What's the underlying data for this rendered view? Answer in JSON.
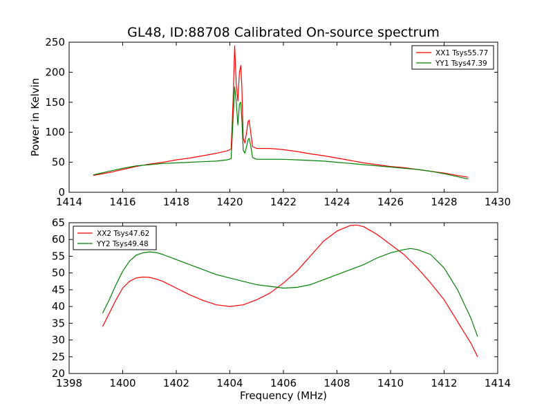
{
  "title": "GL48, ID:88708 Calibrated On-source spectrum",
  "chart_data": [
    {
      "type": "line",
      "ylabel": "Power in Kelvin",
      "xlabel": "",
      "xlim": [
        1414,
        1430
      ],
      "ylim": [
        0,
        250
      ],
      "xticks": [
        "1414",
        "1416",
        "1418",
        "1420",
        "1422",
        "1424",
        "1426",
        "1428",
        "1430"
      ],
      "yticks": [
        "0",
        "50",
        "100",
        "150",
        "200",
        "250"
      ],
      "legend_position": "top-right",
      "series": [
        {
          "name": "XX1 Tsys55.77",
          "color": "#ff0000",
          "points": [
            [
              1414.9,
              28
            ],
            [
              1415.5,
              33
            ],
            [
              1416.0,
              38
            ],
            [
              1416.5,
              43
            ],
            [
              1417.0,
              47
            ],
            [
              1417.5,
              50
            ],
            [
              1418.0,
              54
            ],
            [
              1418.5,
              57
            ],
            [
              1419.0,
              61
            ],
            [
              1419.5,
              65
            ],
            [
              1419.9,
              69
            ],
            [
              1420.05,
              72
            ],
            [
              1420.12,
              150
            ],
            [
              1420.18,
              244
            ],
            [
              1420.24,
              180
            ],
            [
              1420.3,
              152
            ],
            [
              1420.36,
              200
            ],
            [
              1420.41,
              211
            ],
            [
              1420.45,
              175
            ],
            [
              1420.5,
              90
            ],
            [
              1420.56,
              82
            ],
            [
              1420.62,
              98
            ],
            [
              1420.68,
              118
            ],
            [
              1420.72,
              120
            ],
            [
              1420.78,
              100
            ],
            [
              1420.85,
              76
            ],
            [
              1421.0,
              73
            ],
            [
              1421.5,
              73
            ],
            [
              1422.0,
              71
            ],
            [
              1422.5,
              68
            ],
            [
              1423.0,
              64
            ],
            [
              1423.5,
              61
            ],
            [
              1424.0,
              57
            ],
            [
              1424.5,
              53
            ],
            [
              1425.0,
              49
            ],
            [
              1425.5,
              46
            ],
            [
              1426.0,
              43
            ],
            [
              1426.5,
              41
            ],
            [
              1427.0,
              38
            ],
            [
              1427.5,
              35
            ],
            [
              1428.0,
              32
            ],
            [
              1428.5,
              28
            ],
            [
              1428.9,
              25
            ]
          ]
        },
        {
          "name": "YY1 Tsys47.39",
          "color": "#008000",
          "points": [
            [
              1414.9,
              29
            ],
            [
              1415.5,
              35
            ],
            [
              1416.0,
              40
            ],
            [
              1416.5,
              44
            ],
            [
              1417.0,
              46
            ],
            [
              1417.5,
              48
            ],
            [
              1418.0,
              49
            ],
            [
              1418.5,
              50
            ],
            [
              1419.0,
              51
            ],
            [
              1419.5,
              52
            ],
            [
              1419.9,
              54
            ],
            [
              1420.05,
              56
            ],
            [
              1420.12,
              120
            ],
            [
              1420.18,
              176
            ],
            [
              1420.24,
              150
            ],
            [
              1420.3,
              112
            ],
            [
              1420.36,
              147
            ],
            [
              1420.41,
              150
            ],
            [
              1420.45,
              120
            ],
            [
              1420.5,
              70
            ],
            [
              1420.56,
              65
            ],
            [
              1420.62,
              75
            ],
            [
              1420.68,
              88
            ],
            [
              1420.72,
              90
            ],
            [
              1420.78,
              78
            ],
            [
              1420.85,
              58
            ],
            [
              1421.0,
              55
            ],
            [
              1421.5,
              55
            ],
            [
              1422.0,
              55
            ],
            [
              1422.5,
              54
            ],
            [
              1423.0,
              53
            ],
            [
              1423.5,
              52
            ],
            [
              1424.0,
              50
            ],
            [
              1424.5,
              48
            ],
            [
              1425.0,
              46
            ],
            [
              1425.5,
              44
            ],
            [
              1426.0,
              42
            ],
            [
              1426.5,
              40
            ],
            [
              1427.0,
              38
            ],
            [
              1427.5,
              35
            ],
            [
              1428.0,
              31
            ],
            [
              1428.5,
              26
            ],
            [
              1428.9,
              22
            ]
          ]
        }
      ]
    },
    {
      "type": "line",
      "ylabel": "",
      "xlabel": "Frequency (MHz)",
      "xlim": [
        1398,
        1414
      ],
      "ylim": [
        20,
        65
      ],
      "xticks": [
        "1398",
        "1400",
        "1402",
        "1404",
        "1406",
        "1408",
        "1410",
        "1412",
        "1414"
      ],
      "yticks": [
        "20",
        "25",
        "30",
        "35",
        "40",
        "45",
        "50",
        "55",
        "60",
        "65"
      ],
      "legend_position": "top-left",
      "series": [
        {
          "name": "XX2 Tsys47.62",
          "color": "#ff0000",
          "points": [
            [
              1399.25,
              34
            ],
            [
              1399.5,
              38
            ],
            [
              1399.75,
              42
            ],
            [
              1400.0,
              45.5
            ],
            [
              1400.25,
              47.5
            ],
            [
              1400.5,
              48.5
            ],
            [
              1400.75,
              48.8
            ],
            [
              1401.0,
              48.7
            ],
            [
              1401.25,
              48.2
            ],
            [
              1401.5,
              47.5
            ],
            [
              1402.0,
              45.5
            ],
            [
              1402.5,
              43.5
            ],
            [
              1403.0,
              41.8
            ],
            [
              1403.5,
              40.5
            ],
            [
              1404.0,
              40.0
            ],
            [
              1404.5,
              40.5
            ],
            [
              1405.0,
              42.0
            ],
            [
              1405.5,
              44.0
            ],
            [
              1406.0,
              47.0
            ],
            [
              1406.5,
              50.5
            ],
            [
              1407.0,
              55.0
            ],
            [
              1407.5,
              59.5
            ],
            [
              1408.0,
              62.5
            ],
            [
              1408.5,
              64.2
            ],
            [
              1408.75,
              64.3
            ],
            [
              1409.0,
              63.8
            ],
            [
              1409.5,
              61.5
            ],
            [
              1410.0,
              58.5
            ],
            [
              1410.5,
              55.5
            ],
            [
              1411.0,
              51.5
            ],
            [
              1411.5,
              47.0
            ],
            [
              1412.0,
              42.0
            ],
            [
              1412.5,
              35.5
            ],
            [
              1413.0,
              29.0
            ],
            [
              1413.25,
              25.0
            ]
          ]
        },
        {
          "name": "YY2 Tsys49.48",
          "color": "#008000",
          "points": [
            [
              1399.25,
              38
            ],
            [
              1399.5,
              42
            ],
            [
              1399.75,
              46.5
            ],
            [
              1400.0,
              50.5
            ],
            [
              1400.25,
              53.5
            ],
            [
              1400.5,
              55.3
            ],
            [
              1400.75,
              56.0
            ],
            [
              1401.0,
              56.3
            ],
            [
              1401.25,
              56.1
            ],
            [
              1401.5,
              55.5
            ],
            [
              1402.0,
              54.0
            ],
            [
              1402.5,
              52.5
            ],
            [
              1403.0,
              51.0
            ],
            [
              1403.5,
              49.5
            ],
            [
              1404.0,
              48.5
            ],
            [
              1404.5,
              47.5
            ],
            [
              1405.0,
              46.5
            ],
            [
              1405.5,
              46.0
            ],
            [
              1406.0,
              45.5
            ],
            [
              1406.5,
              45.7
            ],
            [
              1407.0,
              46.5
            ],
            [
              1407.5,
              48.0
            ],
            [
              1408.0,
              49.5
            ],
            [
              1408.5,
              51.0
            ],
            [
              1409.0,
              52.5
            ],
            [
              1409.5,
              54.5
            ],
            [
              1410.0,
              56.0
            ],
            [
              1410.5,
              57.0
            ],
            [
              1410.75,
              57.3
            ],
            [
              1411.0,
              57.0
            ],
            [
              1411.5,
              55.5
            ],
            [
              1412.0,
              51.5
            ],
            [
              1412.5,
              45.0
            ],
            [
              1413.0,
              36.5
            ],
            [
              1413.25,
              31.0
            ]
          ]
        }
      ]
    }
  ]
}
